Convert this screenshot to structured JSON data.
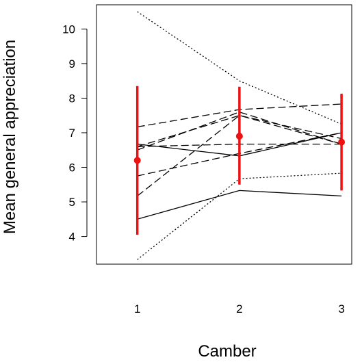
{
  "chart_data": {
    "type": "line",
    "title": "",
    "xlabel": "Camber",
    "ylabel": "Mean general appreciation",
    "x": [
      1,
      2,
      3
    ],
    "x_ticks": [
      "1",
      "2",
      "3"
    ],
    "y_ticks": [
      4,
      5,
      6,
      7,
      8,
      9,
      10
    ],
    "xlim": [
      0.6,
      3.1
    ],
    "ylim": [
      3.2,
      10.7
    ],
    "grid": false,
    "legend": "none",
    "series": [
      {
        "style": "solid",
        "values": [
          4.5,
          5.33,
          5.17
        ]
      },
      {
        "style": "solid",
        "values": [
          6.67,
          6.33,
          7.0
        ]
      },
      {
        "style": "dashed",
        "values": [
          7.17,
          7.67,
          7.83
        ]
      },
      {
        "style": "dashed",
        "values": [
          6.6,
          7.5,
          6.67
        ]
      },
      {
        "style": "dashed",
        "values": [
          6.5,
          7.6,
          6.67
        ]
      },
      {
        "style": "dashed",
        "values": [
          5.75,
          6.4,
          7.0
        ]
      },
      {
        "style": "dashed",
        "values": [
          5.17,
          7.5,
          6.83
        ]
      },
      {
        "style": "dashed",
        "values": [
          6.6,
          6.67,
          6.67
        ]
      },
      {
        "style": "dotted",
        "values": [
          10.5,
          8.5,
          7.25
        ]
      },
      {
        "style": "dotted",
        "values": [
          3.33,
          5.67,
          5.83
        ]
      }
    ],
    "means": {
      "color": "#ee1111",
      "values": [
        6.2,
        6.9,
        6.73
      ],
      "lower": [
        4.05,
        5.5,
        5.33
      ],
      "upper": [
        8.35,
        8.33,
        8.13
      ]
    }
  }
}
